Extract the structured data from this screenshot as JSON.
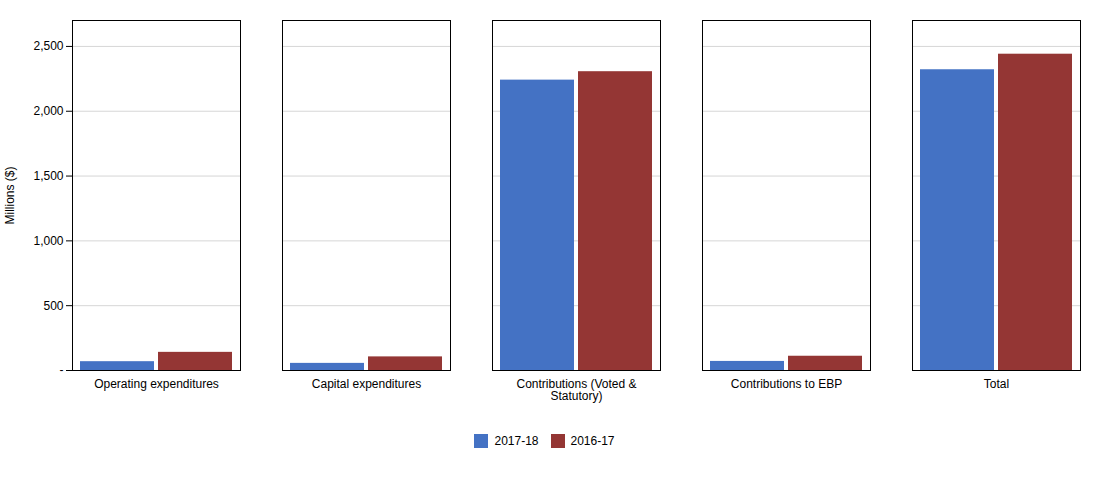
{
  "chart_data": {
    "type": "bar",
    "categories": [
      "Operating expenditures",
      "Capital expenditures",
      "Contributions (Voted &\nStatutory)",
      "Contributions to EBP",
      "Total"
    ],
    "series": [
      {
        "name": "2017-18",
        "color": "#4472C4",
        "values": [
          68,
          55,
          2240,
          70,
          2320
        ]
      },
      {
        "name": "2016-17",
        "color": "#943634",
        "values": [
          140,
          105,
          2305,
          110,
          2440
        ]
      }
    ],
    "ylabel": "Millions ($)",
    "ylim": [
      0,
      2700
    ],
    "yticks": [
      {
        "value": 0,
        "label": "-"
      },
      500,
      {
        "value": 1000,
        "label": "1,000"
      },
      {
        "value": 1500,
        "label": "1,500"
      },
      {
        "value": 2000,
        "label": "2,000"
      },
      {
        "value": 2500,
        "label": "2,500"
      }
    ],
    "grid": true,
    "legend": "bottom"
  }
}
